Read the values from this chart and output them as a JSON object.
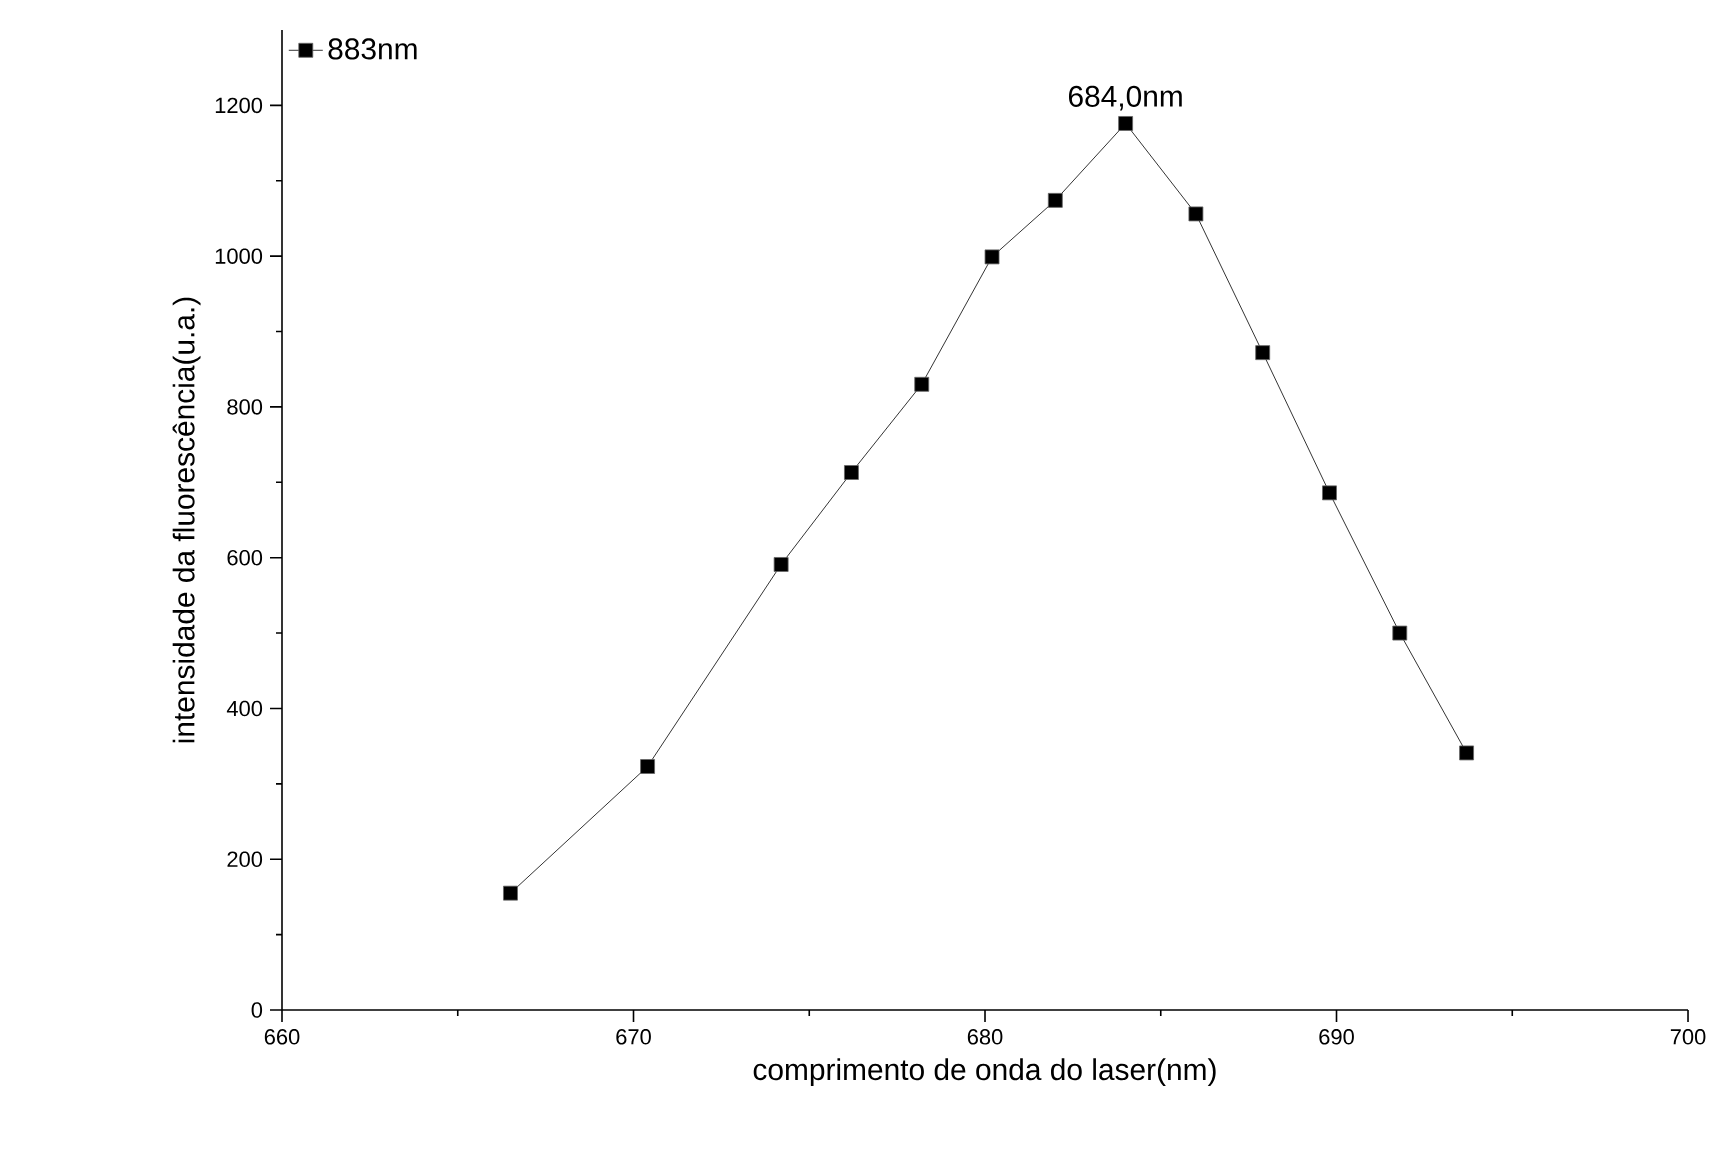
{
  "chart_data": {
    "type": "line",
    "xlabel": "comprimento de onda do laser(nm)",
    "ylabel": "intensidade da fluorescência(u.a.)",
    "x": [
      666.5,
      670.4,
      674.2,
      676.2,
      678.2,
      680.2,
      682.0,
      684.0,
      686.0,
      687.9,
      689.8,
      691.8,
      693.7
    ],
    "series": [
      {
        "name": "883nm",
        "color": "#000000",
        "values": [
          155,
          323,
          591,
          713,
          830,
          999,
          1074,
          1176,
          1056,
          872,
          686,
          500,
          341
        ]
      }
    ],
    "xlim": [
      660,
      700
    ],
    "ylim": [
      0,
      1300
    ],
    "xticks": [
      660,
      670,
      680,
      690,
      700
    ],
    "yticks": [
      0,
      200,
      400,
      600,
      800,
      1000,
      1200
    ],
    "annotations": [
      {
        "text": "684,0nm",
        "x": 684.0,
        "y": 1176
      }
    ],
    "legend": "top left",
    "marker": "square",
    "line_style": "solid",
    "grid": false
  }
}
